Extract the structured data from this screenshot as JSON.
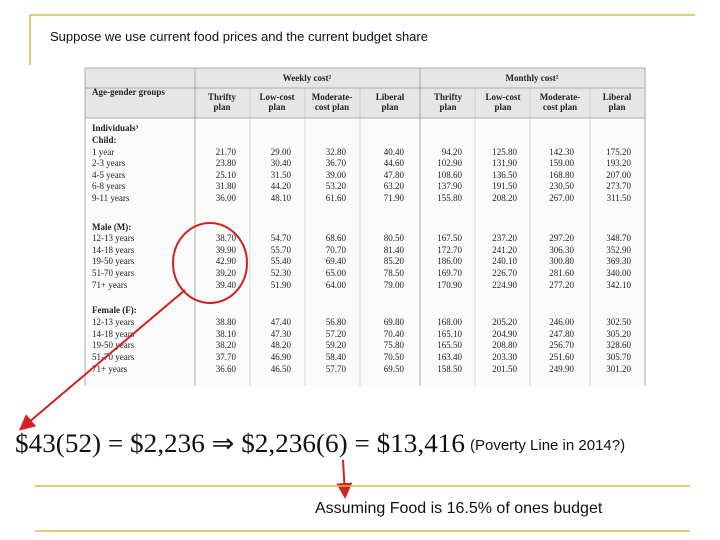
{
  "header": {
    "title": "Suppose we use current food prices and the current budget share"
  },
  "table": {
    "group_header": "Age-gender groups",
    "weekly_header": "Weekly cost²",
    "monthly_header": "Monthly cost²",
    "plans": [
      [
        "Thrifty",
        "plan"
      ],
      [
        "Low-cost",
        "plan"
      ],
      [
        "Moderate-",
        "cost plan"
      ],
      [
        "Liberal",
        "plan"
      ],
      [
        "Thrifty",
        "plan"
      ],
      [
        "Low-cost",
        "plan"
      ],
      [
        "Moderate-",
        "cost plan"
      ],
      [
        "Liberal",
        "plan"
      ]
    ],
    "rows": [
      {
        "label": "Individuals³"
      },
      {
        "label": "Child:"
      },
      {
        "label": "1 year",
        "cells": [
          "21.70",
          "29.00",
          "32.80",
          "40.40",
          "94.20",
          "125.80",
          "142.30",
          "175.20"
        ]
      },
      {
        "label": "2-3 years",
        "cells": [
          "23.80",
          "30.40",
          "36.70",
          "44.60",
          "102.90",
          "131.90",
          "159.00",
          "193.20"
        ]
      },
      {
        "label": "4-5 years",
        "cells": [
          "25.10",
          "31.50",
          "39.00",
          "47.80",
          "108.60",
          "136.50",
          "168.80",
          "207.00"
        ]
      },
      {
        "label": "6-8 years",
        "cells": [
          "31.80",
          "44.20",
          "53.20",
          "63.20",
          "137.90",
          "191.50",
          "230.50",
          "273.70"
        ]
      },
      {
        "label": "9-11 years",
        "cells": [
          "36.00",
          "48.10",
          "61.60",
          "71.90",
          "155.80",
          "208.20",
          "267.00",
          "311.50"
        ]
      },
      {
        "label": "Male (M):"
      },
      {
        "label": "12-13 years",
        "cells": [
          "38.70",
          "54.70",
          "68.60",
          "80.50",
          "167.50",
          "237.20",
          "297.20",
          "348.70"
        ]
      },
      {
        "label": "14-18 years",
        "cells": [
          "39.90",
          "55.70",
          "70.70",
          "81.40",
          "172.70",
          "241.20",
          "306.30",
          "352.90"
        ]
      },
      {
        "label": "19-50 years",
        "cells": [
          "42.90",
          "55.40",
          "69.40",
          "85.20",
          "186.00",
          "240.10",
          "300.80",
          "369.30"
        ]
      },
      {
        "label": "51-70 years",
        "cells": [
          "39.20",
          "52.30",
          "65.00",
          "78.50",
          "169.70",
          "226.70",
          "281.60",
          "340.00"
        ]
      },
      {
        "label": "71+ years",
        "cells": [
          "39.40",
          "51.90",
          "64.00",
          "79.00",
          "170.90",
          "224.90",
          "277.20",
          "342.10"
        ]
      },
      {
        "label": "Female (F):"
      },
      {
        "label": "12-13 years",
        "cells": [
          "38.80",
          "47.40",
          "56.80",
          "69.80",
          "168.00",
          "205.20",
          "246.00",
          "302.50"
        ]
      },
      {
        "label": "14-18 years",
        "cells": [
          "38.10",
          "47.30",
          "57.20",
          "70.40",
          "165.10",
          "204.90",
          "247.80",
          "305.20"
        ]
      },
      {
        "label": "19-50 years",
        "cells": [
          "38.20",
          "48.20",
          "59.20",
          "75.80",
          "165.50",
          "208.80",
          "256.70",
          "328.60"
        ]
      },
      {
        "label": "51-70 years",
        "cells": [
          "37.70",
          "46.90",
          "58.40",
          "70.50",
          "163.40",
          "203.30",
          "251.60",
          "305.70"
        ]
      },
      {
        "label": "71+ years",
        "cells": [
          "36.60",
          "46.50",
          "57.70",
          "69.50",
          "158.50",
          "201.50",
          "249.90",
          "301.20"
        ]
      }
    ]
  },
  "formula": "$43(52) = $2,236 ⇒ $2,236(6) = $13,416",
  "annotation": "(Poverty Line in 2014?)",
  "note": "Assuming Food is 16.5% of ones budget"
}
